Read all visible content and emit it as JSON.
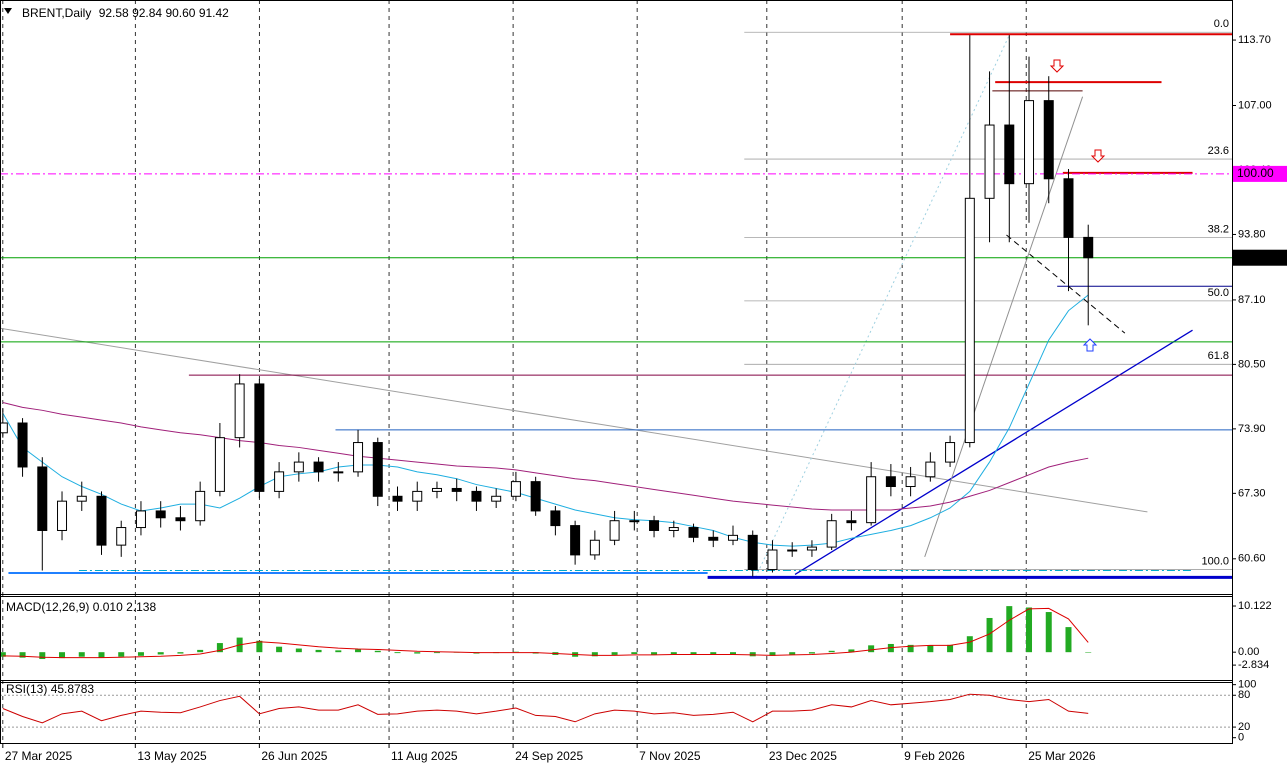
{
  "header": {
    "symbol": "BRENT,Daily",
    "ohlc": [
      "92.58",
      "92.84",
      "90.60",
      "91.42"
    ]
  },
  "chart_data": [
    {
      "type": "candlestick",
      "x": [
        "27 Mar 2025",
        "3 Apr 2025",
        "10 Apr 2025",
        "17 Apr 2025",
        "24 Apr 2025",
        "1 May 2025",
        "8 May 2025",
        "15 May 2025",
        "22 May 2025",
        "29 May 2025",
        "5 Jun 2025",
        "12 Jun 2025",
        "19 Jun 2025",
        "26 Jun 2025",
        "3 Jul 2025",
        "10 Jul 2025",
        "17 Jul 2025",
        "24 Jul 2025",
        "31 Jul 2025",
        "7 Aug 2025",
        "14 Aug 2025",
        "21 Aug 2025",
        "28 Aug 2025",
        "4 Sep 2025",
        "11 Sep 2025",
        "18 Sep 2025",
        "25 Sep 2025",
        "2 Oct 2025",
        "9 Oct 2025",
        "16 Oct 2025",
        "23 Oct 2025",
        "30 Oct 2025",
        "6 Nov 2025",
        "13 Nov 2025",
        "20 Nov 2025",
        "27 Nov 2025",
        "4 Dec 2025",
        "11 Dec 2025",
        "18 Dec 2025",
        "25 Dec 2025",
        "1 Jan 2026",
        "8 Jan 2026",
        "15 Jan 2026",
        "22 Jan 2026",
        "29 Jan 2026",
        "5 Feb 2026",
        "12 Feb 2026",
        "19 Feb 2026",
        "26 Feb 2026",
        "5 Mar 2026",
        "12 Mar 2026",
        "19 Mar 2026",
        "26 Mar 2026",
        "2 Apr 2026",
        "9 Apr 2026",
        "16 Apr 2026"
      ],
      "open": [
        73.5,
        74.5,
        70,
        63.5,
        66.5,
        67,
        62,
        63.8,
        65.5,
        64.8,
        64.5,
        67.5,
        73,
        78.5,
        67.5,
        69.5,
        70.5,
        69.5,
        69.5,
        72.5,
        67,
        66.5,
        67.5,
        67.8,
        67.5,
        66.5,
        67,
        68.5,
        65.5,
        64,
        61,
        62.5,
        64.5,
        64.5,
        63.5,
        63.8,
        62.8,
        62.5,
        63,
        59.5,
        61.5,
        61.5,
        61.8,
        64.5,
        64.3,
        69,
        68,
        69,
        70.5,
        72.5,
        97.5,
        105,
        99,
        107.5,
        99.5,
        93.5
      ],
      "high": [
        76,
        75,
        71,
        67.5,
        68.5,
        67.5,
        64.5,
        66.5,
        66.5,
        66,
        68.5,
        74.5,
        79.5,
        79,
        70.5,
        71.5,
        71,
        70.5,
        73.8,
        73,
        68,
        68.5,
        68.5,
        68.8,
        68,
        67.8,
        69.5,
        69,
        66,
        64.5,
        63.5,
        65.5,
        65.5,
        65,
        64.5,
        64.2,
        63.5,
        64,
        63.5,
        62.5,
        62.3,
        62.5,
        65.2,
        65.5,
        70.5,
        70.3,
        70,
        71.5,
        73.2,
        114.2,
        110.5,
        114.2,
        112,
        110,
        100.5,
        94.8
      ],
      "low": [
        73,
        69,
        59.4,
        62.5,
        65.5,
        61,
        60.8,
        63,
        63.8,
        63.5,
        64,
        67,
        72,
        66.8,
        66.8,
        68.5,
        68.5,
        68.5,
        69,
        66,
        65.5,
        65.5,
        66.8,
        66.5,
        65.5,
        65.8,
        66.5,
        65,
        63,
        60,
        60.5,
        62,
        63.5,
        62.8,
        62.8,
        62.3,
        61.8,
        62,
        58.8,
        59.2,
        60.8,
        60.8,
        61.5,
        63.5,
        64,
        67,
        67,
        68.5,
        70,
        72,
        93,
        93,
        95,
        97,
        88,
        84.5
      ],
      "close": [
        74.5,
        70,
        63.5,
        66.5,
        67,
        62,
        63.8,
        65.5,
        64.8,
        64.5,
        67.5,
        73,
        78.5,
        67.5,
        69.5,
        70.5,
        69.5,
        69.5,
        72.5,
        67,
        66.5,
        67.5,
        67.8,
        67.5,
        66.5,
        67,
        68.5,
        65.5,
        64,
        61,
        62.5,
        64.5,
        64.5,
        63.5,
        63.8,
        62.8,
        62.5,
        63,
        59.5,
        61.5,
        61.5,
        61.8,
        64.5,
        64.3,
        69,
        68,
        69,
        70.5,
        72.5,
        97.5,
        105,
        99,
        107.5,
        99.5,
        93.5,
        91.42
      ],
      "up_color": "#ffffff",
      "down_color": "#000000",
      "outline_color": "#000000",
      "series": [
        {
          "color": "#1eaee0",
          "values": [
            75.5,
            72,
            70.5,
            69,
            68,
            67.2,
            66.2,
            65.5,
            65.8,
            66.2,
            66.2,
            65.8,
            66.8,
            68,
            69,
            69.3,
            69.5,
            70,
            70.2,
            70.2,
            70,
            69.5,
            69.2,
            68.8,
            68.2,
            67.8,
            67.4,
            66.8,
            66.2,
            65.6,
            65.2,
            64.8,
            64.6,
            64.5,
            64.3,
            63.9,
            63.5,
            62.8,
            62.3,
            62,
            61.9,
            62,
            62.2,
            62.7,
            63.1,
            63.5,
            64,
            64.8,
            65.8,
            67.5,
            70.5,
            74,
            78.5,
            83,
            86,
            87.6
          ]
        },
        {
          "color": "#a0207a",
          "values": [
            76.6,
            76.1,
            75.8,
            75.4,
            75.1,
            74.8,
            74.5,
            74.1,
            73.8,
            73.5,
            73.3,
            73,
            72.7,
            72.5,
            72.2,
            72,
            71.7,
            71.4,
            71.1,
            70.9,
            70.7,
            70.5,
            70.3,
            70.1,
            70,
            69.9,
            69.7,
            69.4,
            69.1,
            68.8,
            68.6,
            68.3,
            68,
            67.7,
            67.4,
            67.1,
            66.8,
            66.5,
            66.3,
            66.1,
            65.9,
            65.7,
            65.6,
            65.6,
            65.6,
            65.6,
            65.8,
            66,
            66.4,
            67,
            67.6,
            68.4,
            69.2,
            70,
            70.5,
            70.9
          ]
        }
      ],
      "xlim": [
        "26 Mar 2025",
        "6 Jun 2026"
      ],
      "xticks": [
        "27 Mar 2025",
        "13 May 2025",
        "26 Jun 2025",
        "11 Aug 2025",
        "24 Sep 2025",
        "7 Nov 2025",
        "23 Dec 2025",
        "9 Feb 2026",
        "25 Mar 2026"
      ],
      "ylim": [
        57.1,
        117.8
      ],
      "yticks": [
        {
          "value": 60.6,
          "label": "60.60"
        },
        {
          "value": 67.3,
          "label": "67.30"
        },
        {
          "value": 73.9,
          "label": "73.90"
        },
        {
          "value": 80.5,
          "label": "80.50"
        },
        {
          "value": 87.1,
          "label": "87.10"
        },
        {
          "value": 93.8,
          "label": "93.80"
        },
        {
          "value": 100.4,
          "label": "100.40"
        },
        {
          "value": 107,
          "label": "107.00"
        },
        {
          "value": 113.7,
          "label": "113.70"
        }
      ],
      "grid": true,
      "hlines": [
        {
          "value": 114.3,
          "color": "#dd0000",
          "width": 2,
          "from": "26 Feb 2026"
        },
        {
          "value": 109.4,
          "color": "#dd0000",
          "width": 2,
          "from": "14 Mar 2026",
          "to": "12 May 2026"
        },
        {
          "value": 108.5,
          "color": "#550000",
          "width": 1,
          "from": "13 Mar 2026",
          "to": "14 Apr 2026"
        },
        {
          "value": 100.1,
          "color": "#dd0000",
          "width": 2,
          "from": "7 Apr 2026",
          "to": "23 May 2026"
        },
        {
          "value": 88.5,
          "color": "#000088",
          "width": 1,
          "from": "5 Apr 2026"
        },
        {
          "value": 82.8,
          "color": "#00a000",
          "width": 1
        },
        {
          "value": 79.4,
          "color": "#800040",
          "width": 1,
          "from": "1 Jun 2025"
        },
        {
          "value": 73.8,
          "color": "#2060c0",
          "width": 1,
          "from": "23 Jul 2025"
        },
        {
          "value": 59.4,
          "color": "#00aacc",
          "width": 1,
          "style": "dashdot",
          "from": "23 Apr 2025",
          "to": "23 May 2026"
        },
        {
          "value": 59.15,
          "color": "#2080ff",
          "width": 2,
          "from": "29 Mar 2025",
          "to": "2 Dec 2025"
        },
        {
          "value": 58.7,
          "color": "#0000cc",
          "width": 3,
          "from": "2 Dec 2025"
        },
        {
          "value": 100,
          "label": "100.00",
          "color": "#ff00ff",
          "width": 1,
          "style": "dashdot",
          "label_bg": "#ff00ff"
        },
        {
          "value": 91.42,
          "label": "91.42",
          "color": "#00a000",
          "width": 1,
          "label_bg": "#000000"
        }
      ],
      "trendlines": [
        {
          "from": [
            "26 Mar 2025",
            84.2
          ],
          "to": [
            "7 May 2026",
            65.4
          ],
          "color": "#a0a0a0",
          "width": 1
        },
        {
          "from": [
            "2 Jan 2026",
            59.0
          ],
          "to": [
            "23 May 2026",
            84.0
          ],
          "color": "#0000cc",
          "width": 1.3
        },
        {
          "from": [
            "17 Feb 2026",
            60.8
          ],
          "to": [
            "14 Apr 2026",
            107.9
          ],
          "color": "#909090",
          "width": 1
        },
        {
          "from": [
            "19 Dec 2025",
            58.7
          ],
          "to": [
            "19 Mar 2026",
            114.2
          ],
          "color": "#9fd0e0",
          "width": 1,
          "style": "dot"
        },
        {
          "from": [
            "18 Mar 2026",
            93.75
          ],
          "to": [
            "29 Apr 2026",
            83.7
          ],
          "color": "#000000",
          "width": 1,
          "style": "dash"
        }
      ],
      "fib": {
        "high": 114.5,
        "low": 59.5,
        "from": "15 Dec 2025",
        "color": "#a0a0a0",
        "levels": [
          {
            "value": 0,
            "label": "0.0"
          },
          {
            "value": 23.6,
            "label": "23.6"
          },
          {
            "value": 38.2,
            "label": "38.2"
          },
          {
            "value": 50,
            "label": "50.0"
          },
          {
            "value": 61.8,
            "label": "61.8"
          },
          {
            "value": 100,
            "label": "100.0"
          }
        ]
      }
    },
    {
      "type": "macd",
      "title": "MACD(12,26,9)",
      "main_label": "0.010",
      "signal_label": "2.138",
      "histogram": [
        -1,
        -1.2,
        -1.5,
        -1.3,
        -1,
        -1.2,
        -1,
        -0.8,
        -0.5,
        -0.3,
        0.5,
        2,
        3.2,
        2.5,
        1.2,
        0.8,
        0.5,
        0.4,
        0.6,
        0.3,
        -0.2,
        -0.3,
        -0.2,
        -0.1,
        -0.3,
        -0.2,
        0.1,
        -0.3,
        -0.6,
        -1,
        -0.9,
        -0.6,
        -0.4,
        -0.5,
        -0.4,
        -0.5,
        -0.6,
        -0.5,
        -0.9,
        -0.8,
        -0.5,
        -0.3,
        0.3,
        0.6,
        1.5,
        1.8,
        1.6,
        1.5,
        1.6,
        3.5,
        7.5,
        10.1,
        9.8,
        8.8,
        5.5,
        0.01
      ],
      "signal": [
        -0.8,
        -0.9,
        -1.1,
        -1.2,
        -1.2,
        -1.2,
        -1.1,
        -1,
        -0.9,
        -0.7,
        -0.4,
        0.4,
        1.6,
        2.3,
        2,
        1.6,
        1.2,
        0.9,
        0.7,
        0.6,
        0.4,
        0.2,
        0.1,
        0,
        -0.1,
        -0.1,
        -0.1,
        -0.1,
        -0.3,
        -0.5,
        -0.7,
        -0.7,
        -0.6,
        -0.6,
        -0.5,
        -0.5,
        -0.5,
        -0.5,
        -0.6,
        -0.7,
        -0.6,
        -0.5,
        -0.3,
        0,
        0.5,
        1,
        1.3,
        1.5,
        1.5,
        2.2,
        4,
        7,
        9.5,
        9.6,
        7.3,
        2.138
      ],
      "histogram_color": "#22aa22",
      "signal_color": "#dd0000",
      "ylim": [
        -6.1,
        12.1
      ],
      "yticks": [
        {
          "value": -2.834,
          "label": "-2.834"
        },
        {
          "value": 0,
          "label": "0.00"
        },
        10.122
      ]
    },
    {
      "type": "rsi",
      "title": "RSI(13)",
      "value_label": "45.8783",
      "color": "#cc0000",
      "values": [
        55,
        40,
        28,
        45,
        50,
        32,
        42,
        50,
        48,
        47,
        58,
        70,
        78,
        45,
        55,
        58,
        52,
        52,
        62,
        44,
        45,
        50,
        52,
        50,
        45,
        50,
        56,
        42,
        40,
        30,
        45,
        52,
        50,
        45,
        47,
        42,
        44,
        48,
        30,
        50,
        50,
        52,
        62,
        58,
        70,
        62,
        65,
        68,
        72,
        82,
        80,
        72,
        68,
        72,
        50,
        45.8783
      ],
      "ylim": [
        -10,
        105
      ],
      "yticks": [
        0,
        20,
        80,
        100
      ],
      "levels": [
        20,
        80
      ]
    }
  ]
}
